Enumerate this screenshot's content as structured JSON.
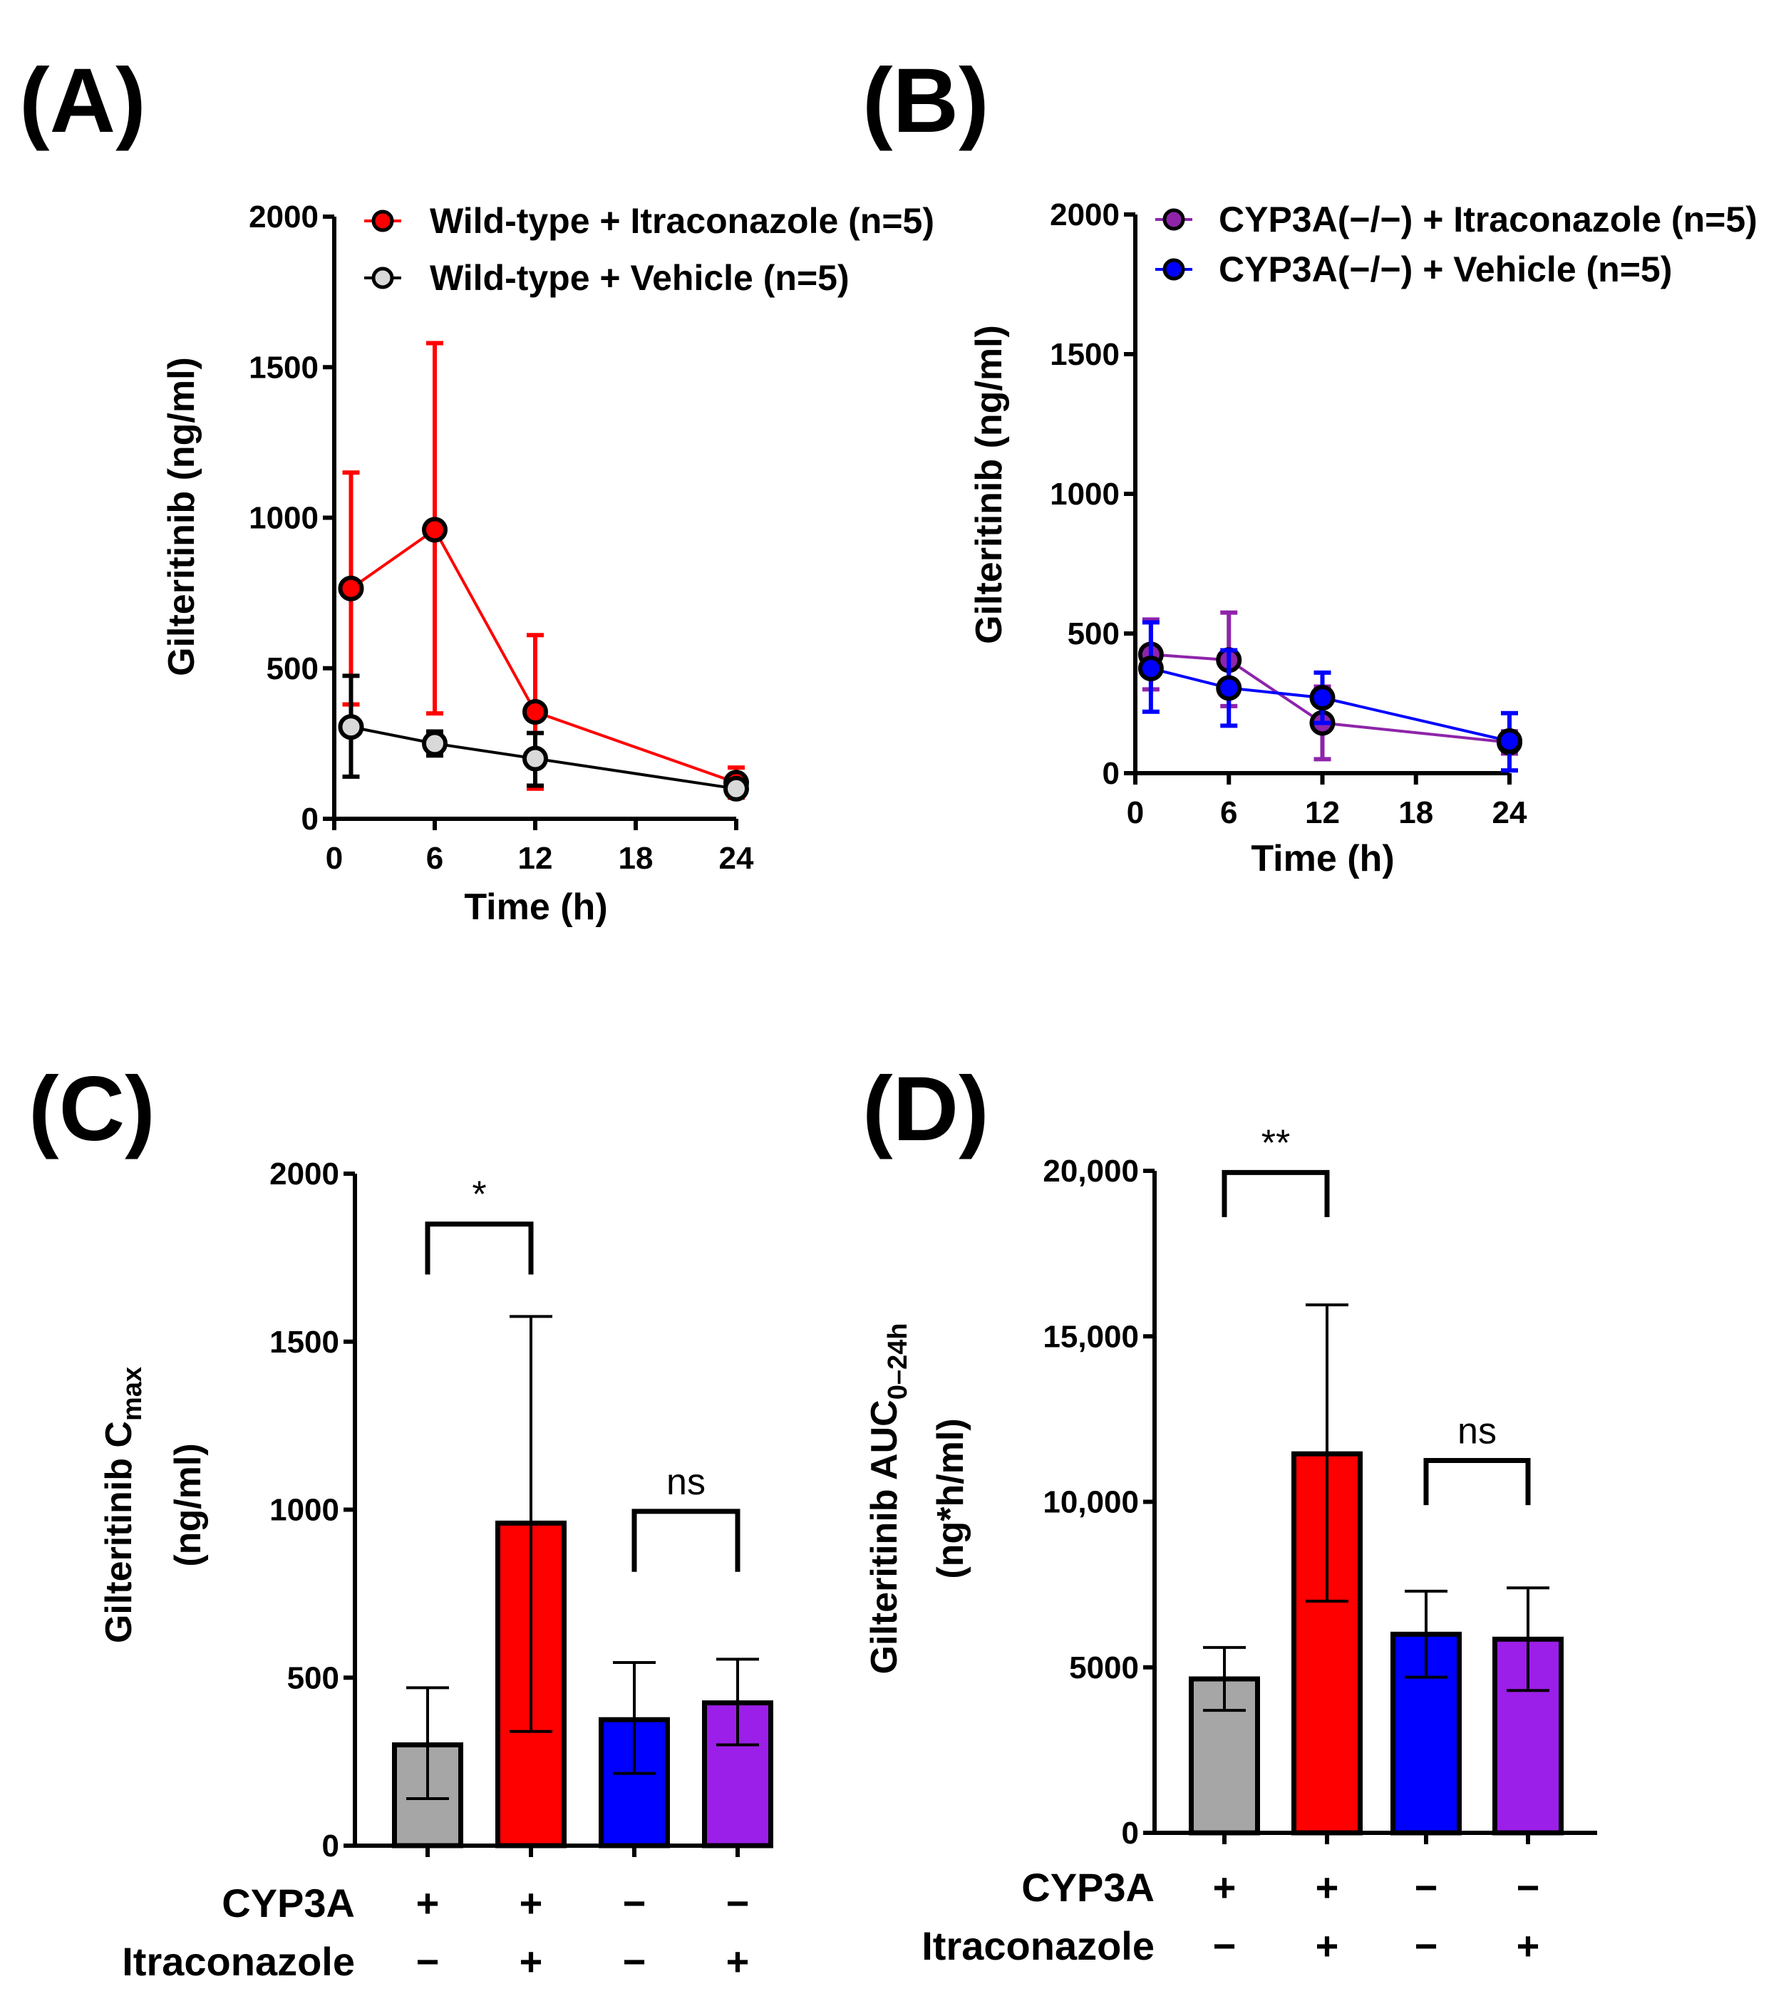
{
  "chart_data": [
    {
      "panel": "(A)",
      "type": "line",
      "xlabel": "Time  (h)",
      "ylabel": "Gilteritinib (ng/ml)",
      "xlim": [
        0,
        24
      ],
      "ylim": [
        0,
        2000
      ],
      "xticks": [
        "0",
        "6",
        "12",
        "18",
        "24"
      ],
      "yticks": [
        "0",
        "500",
        "1000",
        "1500",
        "2000"
      ],
      "legend_position": "top-right",
      "series": [
        {
          "name": "Wild-type + Itraconazole (n=5)",
          "color": "#ff0000",
          "marker_fill": "#ff0000",
          "x": [
            1,
            6,
            12,
            24
          ],
          "y": [
            765,
            960,
            355,
            120
          ],
          "err_low": [
            380,
            350,
            100,
            70
          ],
          "err_high": [
            1150,
            1580,
            610,
            170
          ]
        },
        {
          "name": "Wild-type + Vehicle (n=5)",
          "color": "#000000",
          "marker_fill": "#d9d9d9",
          "x": [
            1,
            6,
            12,
            24
          ],
          "y": [
            305,
            250,
            200,
            100
          ],
          "err_low": [
            140,
            210,
            110,
            80
          ],
          "err_high": [
            475,
            290,
            285,
            120
          ]
        }
      ]
    },
    {
      "panel": "(B)",
      "type": "line",
      "xlabel": "Time  (h)",
      "ylabel": "Gilteritinib (ng/ml)",
      "xlim": [
        0,
        24
      ],
      "ylim": [
        0,
        2000
      ],
      "xticks": [
        "0",
        "6",
        "12",
        "18",
        "24"
      ],
      "yticks": [
        "0",
        "500",
        "1000",
        "1500",
        "2000"
      ],
      "legend_position": "top-right",
      "series": [
        {
          "name": "CYP3A(−/−) + Itraconazole (n=5)",
          "color": "#8e24aa",
          "marker_fill": "#8e24aa",
          "x": [
            1,
            6,
            12,
            24
          ],
          "y": [
            425,
            405,
            180,
            110
          ],
          "err_low": [
            300,
            240,
            50,
            70
          ],
          "err_high": [
            550,
            575,
            310,
            150
          ]
        },
        {
          "name": "CYP3A(−/−) + Vehicle (n=5)",
          "color": "#0000ff",
          "marker_fill": "#0000ff",
          "x": [
            1,
            6,
            12,
            24
          ],
          "y": [
            375,
            305,
            270,
            115
          ],
          "err_low": [
            220,
            170,
            180,
            10
          ],
          "err_high": [
            540,
            440,
            360,
            215
          ]
        }
      ]
    },
    {
      "panel": "(C)",
      "type": "bar",
      "ylabel": "Gilteritinib C",
      "ylabel_sub": "max",
      "ylabel2": "(ng/ml)",
      "ylim": [
        0,
        2000
      ],
      "yticks": [
        "0",
        "500",
        "1000",
        "1500",
        "2000"
      ],
      "row_labels": [
        "CYP3A",
        "Itraconazole"
      ],
      "bars": [
        {
          "cyp3a": "+",
          "itraconazole": "−",
          "value": 300,
          "err_low": 140,
          "err_high": 470,
          "color": "#a6a6a6"
        },
        {
          "cyp3a": "+",
          "itraconazole": "+",
          "value": 960,
          "err_low": 340,
          "err_high": 1575,
          "color": "#ff0000"
        },
        {
          "cyp3a": "−",
          "itraconazole": "−",
          "value": 375,
          "err_low": 215,
          "err_high": 545,
          "color": "#0000ff"
        },
        {
          "cyp3a": "−",
          "itraconazole": "+",
          "value": 425,
          "err_low": 300,
          "err_high": 555,
          "color": "#9b1fe8"
        }
      ],
      "significance": [
        {
          "from": 0,
          "to": 1,
          "label": "*",
          "top": 1850,
          "leg": 1700
        },
        {
          "from": 2,
          "to": 3,
          "label": "ns",
          "top": 995,
          "leg": 815
        }
      ]
    },
    {
      "panel": "(D)",
      "type": "bar",
      "ylabel": "Gilteritinib AUC",
      "ylabel_sub": "0–24h",
      "ylabel2": "(ng*h/ml)",
      "ylim": [
        0,
        20000
      ],
      "yticks": [
        "0",
        "5000",
        "10,000",
        "15,000",
        "20,000"
      ],
      "row_labels": [
        "CYP3A",
        "Itraconazole"
      ],
      "bars": [
        {
          "cyp3a": "+",
          "itraconazole": "−",
          "value": 4650,
          "err_low": 3700,
          "err_high": 5600,
          "color": "#a6a6a6"
        },
        {
          "cyp3a": "+",
          "itraconazole": "+",
          "value": 11450,
          "err_low": 7000,
          "err_high": 15950,
          "color": "#ff0000"
        },
        {
          "cyp3a": "−",
          "itraconazole": "−",
          "value": 6000,
          "err_low": 4700,
          "err_high": 7300,
          "color": "#0000ff"
        },
        {
          "cyp3a": "−",
          "itraconazole": "+",
          "value": 5850,
          "err_low": 4300,
          "err_high": 7400,
          "color": "#9b1fe8"
        }
      ],
      "significance": [
        {
          "from": 0,
          "to": 1,
          "label": "**",
          "top": 19950,
          "leg": 18600
        },
        {
          "from": 2,
          "to": 3,
          "label": "ns",
          "top": 11250,
          "leg": 9900
        }
      ]
    }
  ]
}
